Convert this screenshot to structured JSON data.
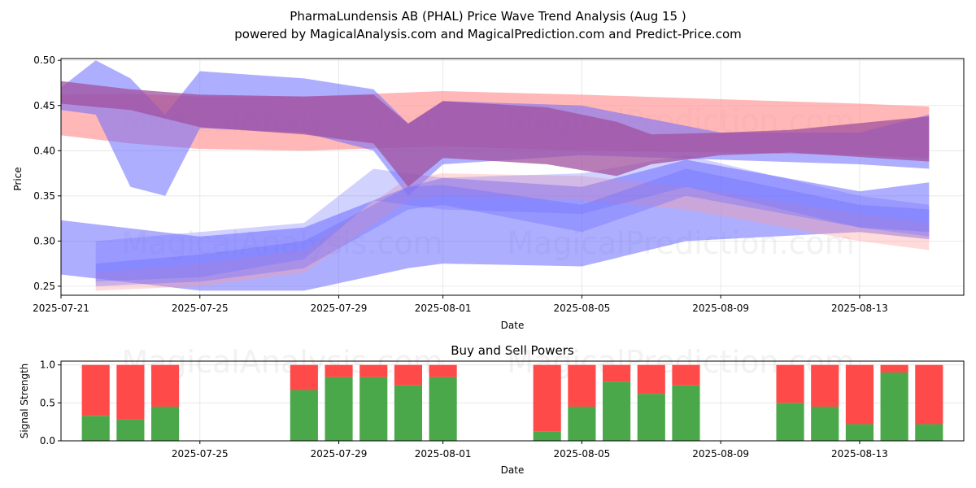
{
  "header": {
    "title": "PharmaLundensis AB (PHAL) Price Wave Trend Analysis (Aug 15 )",
    "subtitle": "powered by MagicalAnalysis.com and MagicalPrediction.com and Predict-Price.com"
  },
  "watermarks": [
    "MagicalAnalysis.com",
    "MagicalPrediction.com"
  ],
  "colors": {
    "buy": "#4aa84a",
    "sell": "#ff4a4a",
    "red_band": "#ff9999",
    "blue_band": "#6b6bff",
    "purple_band": "#a0509f"
  },
  "chart_data": [
    {
      "type": "area",
      "title": "",
      "xlabel": "Date",
      "ylabel": "Price",
      "x_tick_labels": [
        "2025-07-21",
        "2025-07-25",
        "2025-07-29",
        "2025-08-01",
        "2025-08-05",
        "2025-08-09",
        "2025-08-13"
      ],
      "x_tick_dates": [
        "2025-07-21",
        "2025-07-25",
        "2025-07-29",
        "2025-08-01",
        "2025-08-05",
        "2025-08-09",
        "2025-08-13"
      ],
      "y_tick_labels": [
        "0.25",
        "0.30",
        "0.35",
        "0.40",
        "0.45",
        "0.50"
      ],
      "xlim": [
        "2025-07-21",
        "2025-08-16"
      ],
      "ylim": [
        0.24,
        0.502
      ],
      "grid": true,
      "bands": [
        {
          "color": "red",
          "opacity": 0.7,
          "x": [
            "2025-07-21",
            "2025-07-23",
            "2025-07-25",
            "2025-07-28",
            "2025-08-01",
            "2025-08-05",
            "2025-08-09",
            "2025-08-13",
            "2025-08-15"
          ],
          "upper": [
            0.462,
            0.463,
            0.46,
            0.46,
            0.466,
            0.462,
            0.457,
            0.452,
            0.449
          ],
          "lower": [
            0.417,
            0.408,
            0.402,
            0.4,
            0.405,
            0.4,
            0.398,
            0.395,
            0.392
          ]
        },
        {
          "color": "blue",
          "opacity": 0.55,
          "x": [
            "2025-07-21",
            "2025-07-22",
            "2025-07-23",
            "2025-07-24",
            "2025-07-25",
            "2025-07-28",
            "2025-07-30",
            "2025-07-31",
            "2025-08-01",
            "2025-08-05",
            "2025-08-09",
            "2025-08-13",
            "2025-08-15"
          ],
          "upper": [
            0.47,
            0.5,
            0.48,
            0.44,
            0.488,
            0.48,
            0.468,
            0.43,
            0.455,
            0.45,
            0.42,
            0.42,
            0.44
          ],
          "lower": [
            0.445,
            0.44,
            0.36,
            0.35,
            0.425,
            0.42,
            0.4,
            0.35,
            0.385,
            0.395,
            0.39,
            0.385,
            0.38
          ]
        },
        {
          "color": "blue",
          "opacity": 0.55,
          "x": [
            "2025-07-21",
            "2025-07-25",
            "2025-07-28",
            "2025-07-31",
            "2025-08-01",
            "2025-08-05",
            "2025-08-08",
            "2025-08-13",
            "2025-08-15"
          ],
          "upper": [
            0.323,
            0.305,
            0.315,
            0.36,
            0.37,
            0.36,
            0.39,
            0.355,
            0.365
          ],
          "lower": [
            0.263,
            0.245,
            0.245,
            0.27,
            0.275,
            0.272,
            0.3,
            0.31,
            0.302
          ]
        },
        {
          "color": "red",
          "opacity": 0.35,
          "x": [
            "2025-07-22",
            "2025-07-25",
            "2025-07-28",
            "2025-07-31",
            "2025-08-01",
            "2025-08-05",
            "2025-08-08",
            "2025-08-13",
            "2025-08-15"
          ],
          "upper": [
            0.265,
            0.275,
            0.29,
            0.37,
            0.375,
            0.372,
            0.36,
            0.33,
            0.32
          ],
          "lower": [
            0.245,
            0.25,
            0.265,
            0.345,
            0.35,
            0.345,
            0.335,
            0.3,
            0.29
          ]
        },
        {
          "color": "blue",
          "opacity": 0.35,
          "x": [
            "2025-07-22",
            "2025-07-25",
            "2025-07-28",
            "2025-07-31",
            "2025-08-01",
            "2025-08-05",
            "2025-08-08",
            "2025-08-13",
            "2025-08-15"
          ],
          "upper": [
            0.275,
            0.285,
            0.3,
            0.36,
            0.362,
            0.34,
            0.38,
            0.34,
            0.335
          ],
          "lower": [
            0.25,
            0.255,
            0.27,
            0.335,
            0.34,
            0.31,
            0.35,
            0.315,
            0.31
          ]
        },
        {
          "color": "blue",
          "opacity": 0.3,
          "x": [
            "2025-07-22",
            "2025-07-25",
            "2025-07-28",
            "2025-07-30",
            "2025-08-01",
            "2025-08-05",
            "2025-08-08",
            "2025-08-13",
            "2025-08-15"
          ],
          "upper": [
            0.3,
            0.31,
            0.32,
            0.38,
            0.37,
            0.375,
            0.395,
            0.35,
            0.34
          ],
          "lower": [
            0.255,
            0.26,
            0.28,
            0.345,
            0.335,
            0.33,
            0.36,
            0.315,
            0.305
          ]
        },
        {
          "color": "purple",
          "opacity": 0.75,
          "x": [
            "2025-07-21",
            "2025-07-23",
            "2025-07-25",
            "2025-07-28",
            "2025-07-30",
            "2025-07-31",
            "2025-08-01",
            "2025-08-04",
            "2025-08-06",
            "2025-08-07",
            "2025-08-09",
            "2025-08-11",
            "2025-08-15"
          ],
          "upper": [
            0.477,
            0.468,
            0.462,
            0.46,
            0.462,
            0.43,
            0.455,
            0.448,
            0.432,
            0.418,
            0.42,
            0.423,
            0.438
          ],
          "lower": [
            0.452,
            0.445,
            0.426,
            0.418,
            0.408,
            0.36,
            0.392,
            0.385,
            0.372,
            0.385,
            0.395,
            0.398,
            0.388
          ]
        }
      ]
    },
    {
      "type": "bar",
      "title": "Buy and Sell Powers",
      "xlabel": "Date",
      "ylabel": "Signal Strength",
      "x_tick_labels": [
        "2025-07-25",
        "2025-07-29",
        "2025-08-01",
        "2025-08-05",
        "2025-08-09",
        "2025-08-13"
      ],
      "x_tick_dates": [
        "2025-07-25",
        "2025-07-29",
        "2025-08-01",
        "2025-08-05",
        "2025-08-09",
        "2025-08-13"
      ],
      "y_tick_labels": [
        "0.0",
        "0.5",
        "1.0"
      ],
      "xlim": [
        "2025-07-21",
        "2025-08-16"
      ],
      "ylim": [
        0,
        1.05
      ],
      "grid": true,
      "series": [
        {
          "name": "Buy",
          "color": "green"
        },
        {
          "name": "Sell",
          "color": "red"
        }
      ],
      "dates": [
        "2025-07-22",
        "2025-07-23",
        "2025-07-24",
        "2025-07-28",
        "2025-07-29",
        "2025-07-30",
        "2025-07-31",
        "2025-08-01",
        "2025-08-04",
        "2025-08-05",
        "2025-08-06",
        "2025-08-07",
        "2025-08-08",
        "2025-08-11",
        "2025-08-12",
        "2025-08-13",
        "2025-08-14",
        "2025-08-15"
      ],
      "buy": [
        0.33,
        0.28,
        0.45,
        0.67,
        0.84,
        0.84,
        0.73,
        0.84,
        0.12,
        0.45,
        0.78,
        0.62,
        0.73,
        0.5,
        0.45,
        0.22,
        0.9,
        0.22
      ],
      "sell": [
        0.67,
        0.72,
        0.55,
        0.33,
        0.16,
        0.16,
        0.27,
        0.16,
        0.88,
        0.55,
        0.22,
        0.38,
        0.27,
        0.5,
        0.55,
        0.78,
        0.1,
        0.78
      ]
    }
  ]
}
